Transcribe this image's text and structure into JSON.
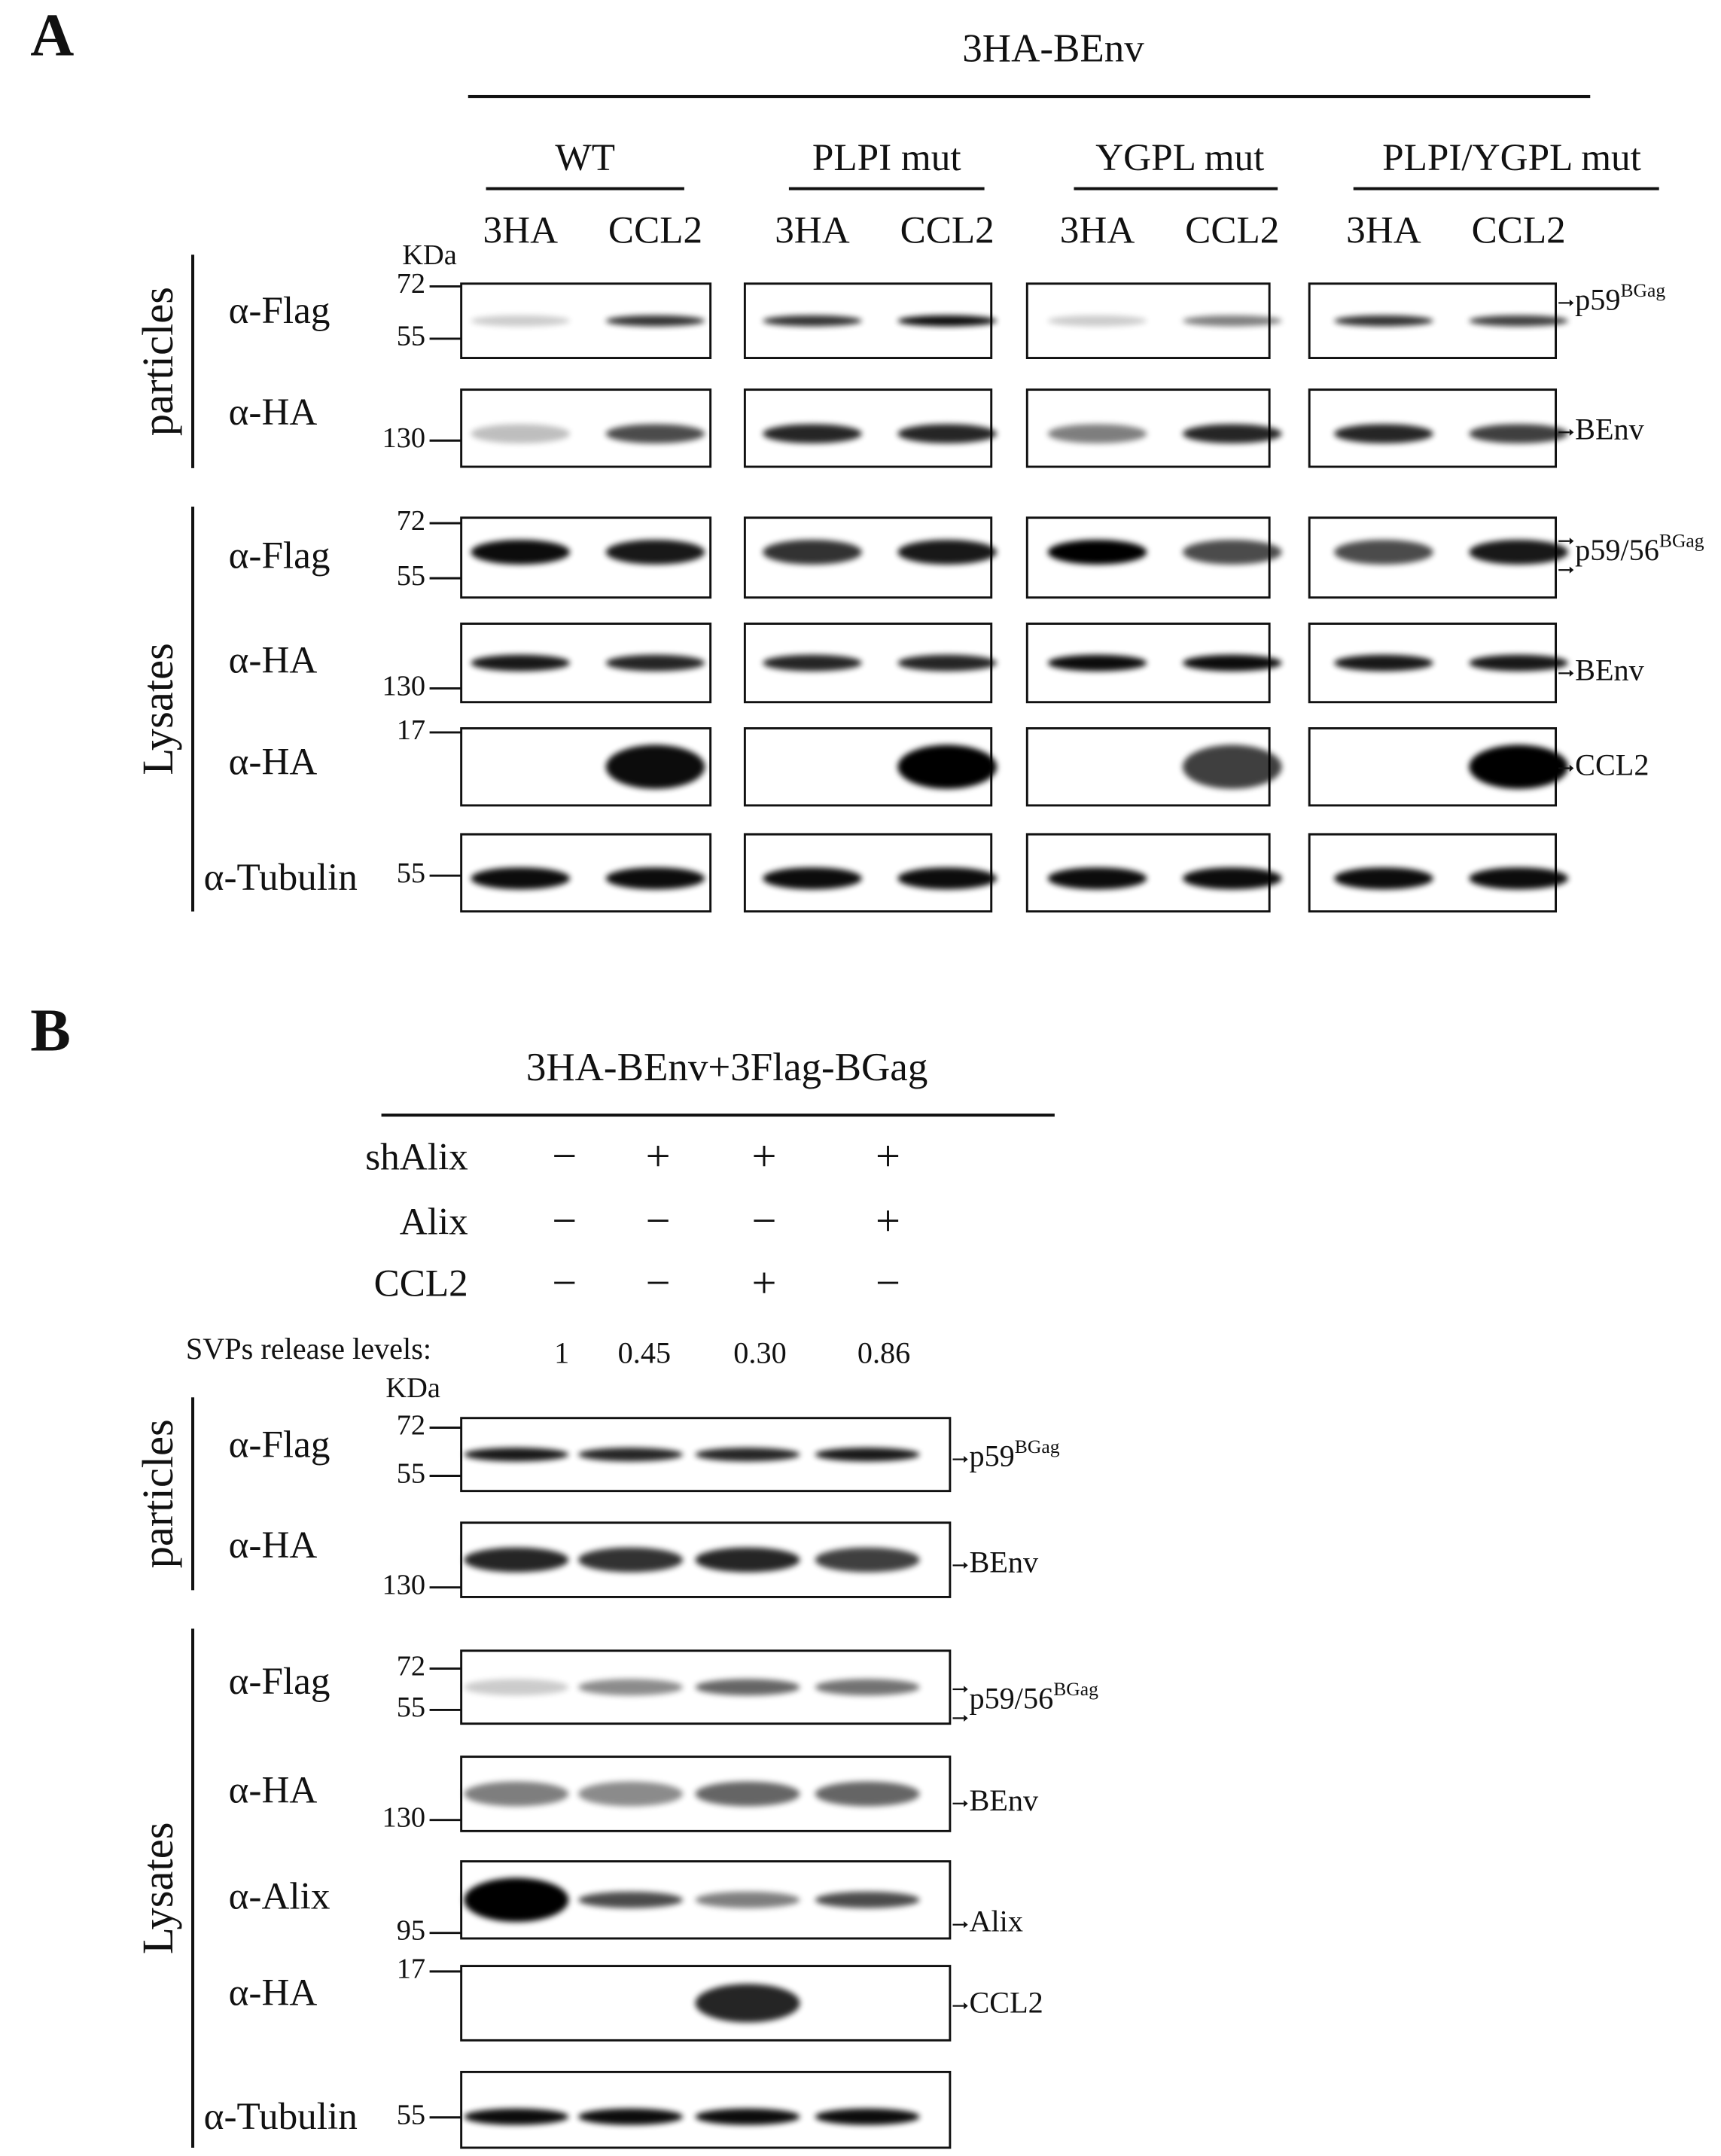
{
  "panel_a": {
    "label": "A",
    "header": "3HA-BEnv",
    "kda": "KDa",
    "groups": [
      {
        "name": "WT",
        "lanes": [
          "3HA",
          "CCL2"
        ]
      },
      {
        "name": "PLPI mut",
        "lanes": [
          "3HA",
          "CCL2"
        ]
      },
      {
        "name": "YGPL mut",
        "lanes": [
          "3HA",
          "CCL2"
        ]
      },
      {
        "name": "PLPI/YGPL mut",
        "lanes": [
          "3HA",
          "CCL2"
        ]
      }
    ],
    "sections": [
      {
        "name": "particles",
        "rows": [
          {
            "antibody": "α-Flag",
            "markers": [
              "72",
              "55"
            ],
            "target": "p59",
            "target_sup": "BGag"
          },
          {
            "antibody": "α-HA",
            "markers": [
              "130"
            ],
            "target": "BEnv"
          }
        ]
      },
      {
        "name": "Lysates",
        "rows": [
          {
            "antibody": "α-Flag",
            "markers": [
              "72",
              "55"
            ],
            "target": "p59/56",
            "target_sup": "BGag"
          },
          {
            "antibody": "α-HA",
            "markers": [
              "130"
            ],
            "target": "BEnv"
          },
          {
            "antibody": "α-HA",
            "markers": [
              "17"
            ],
            "target": "CCL2"
          },
          {
            "antibody": "α-Tubulin",
            "markers": [
              "55"
            ]
          }
        ]
      }
    ]
  },
  "panel_b": {
    "label": "B",
    "header": "3HA-BEnv+3Flag-BGag",
    "kda": "KDa",
    "conditions": [
      {
        "name": "shAlix",
        "signs": [
          "−",
          "+",
          "+",
          "+"
        ]
      },
      {
        "name": "Alix",
        "signs": [
          "−",
          "−",
          "−",
          "+"
        ]
      },
      {
        "name": "CCL2",
        "signs": [
          "−",
          "−",
          "+",
          "−"
        ]
      }
    ],
    "release_label": "SVPs release levels:",
    "release_values": [
      "1",
      "0.45",
      "0.30",
      "0.86"
    ],
    "sections": [
      {
        "name": "particles",
        "rows": [
          {
            "antibody": "α-Flag",
            "markers": [
              "72",
              "55"
            ],
            "target": "p59",
            "target_sup": "BGag"
          },
          {
            "antibody": "α-HA",
            "markers": [
              "130"
            ],
            "target": "BEnv"
          }
        ]
      },
      {
        "name": "Lysates",
        "rows": [
          {
            "antibody": "α-Flag",
            "markers": [
              "72",
              "55"
            ],
            "target": "p59/56",
            "target_sup": "BGag"
          },
          {
            "antibody": "α-HA",
            "markers": [
              "130"
            ],
            "target": "BEnv"
          },
          {
            "antibody": "α-Alix",
            "markers": [
              "95"
            ],
            "target": "Alix"
          },
          {
            "antibody": "α-HA",
            "markers": [
              "17"
            ],
            "target": "CCL2"
          },
          {
            "antibody": "α-Tubulin",
            "markers": [
              "55"
            ]
          }
        ]
      }
    ]
  }
}
